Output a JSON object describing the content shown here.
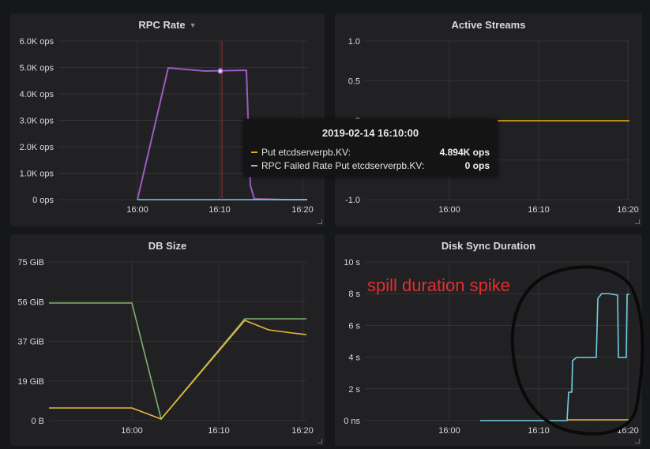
{
  "colors": {
    "background": "#161719",
    "panel": "#212124",
    "grid": "#343436",
    "orange": "#e5ac0e",
    "purple": "#9c5bc4",
    "cyan": "#6ed0e0",
    "green": "#7eb26d",
    "yellow": "#eab839",
    "annotation_red": "#e02f2f"
  },
  "panels": {
    "rpc_rate": {
      "title": "RPC Rate",
      "menu_icon": "caret-down-icon"
    },
    "active_streams": {
      "title": "Active Streams"
    },
    "db_size": {
      "title": "DB Size"
    },
    "disk_sync": {
      "title": "Disk Sync Duration"
    }
  },
  "tooltip": {
    "time": "2019-02-14 16:10:00",
    "rows": [
      {
        "name": "Put etcdserverpb.KV:",
        "value": "4.894K ops",
        "color": "#e5ac0e"
      },
      {
        "name": "RPC Failed Rate Put etcdserverpb.KV:",
        "value": "0 ops",
        "color": "#b9a4e8"
      }
    ]
  },
  "annotation": {
    "text": "spill duration spike"
  },
  "chart_data": [
    {
      "title": "RPC Rate",
      "type": "line",
      "x_ticks": [
        "16:00",
        "16:10",
        "16:20"
      ],
      "y_ticks": [
        "6.0K ops",
        "5.0K ops",
        "4.0K ops",
        "3.0K ops",
        "2.0K ops",
        "1.0K ops",
        "0 ops"
      ],
      "ylim": [
        0,
        6000
      ],
      "x": [
        15.95,
        16.0,
        16.05,
        16.08,
        16.13,
        16.15,
        16.18
      ],
      "series": [
        {
          "name": "Put etcdserverpb.KV:",
          "color": "#9c5bc4",
          "values": [
            0,
            0,
            5000,
            4900,
            4900,
            100,
            0
          ]
        },
        {
          "name": "RPC Failed Rate Put etcdserverpb.KV:",
          "color": "#6ed0e0",
          "values": [
            0,
            0,
            0,
            0,
            0,
            0,
            0
          ]
        }
      ]
    },
    {
      "title": "Active Streams",
      "type": "line",
      "x_ticks": [
        "16:00",
        "16:10",
        "16:20"
      ],
      "y_ticks": [
        "1.0",
        "0.5",
        "0",
        "-0.5",
        "-1.0"
      ],
      "ylim": [
        -1,
        1
      ],
      "x": [
        16.0,
        16.2
      ],
      "series": [
        {
          "color": "#e5ac0e",
          "values": [
            0,
            0
          ]
        }
      ]
    },
    {
      "title": "DB Size",
      "type": "line",
      "x_ticks": [
        "16:00",
        "16:10",
        "16:20"
      ],
      "y_ticks": [
        "75 GiB",
        "56 GiB",
        "37 GiB",
        "19 GiB",
        "0 B"
      ],
      "ylim": [
        0,
        75
      ],
      "x": [
        15.9,
        16.0,
        16.04,
        16.13,
        16.2
      ],
      "series": [
        {
          "color": "#7eb26d",
          "values": [
            56,
            56,
            0,
            48,
            48
          ]
        },
        {
          "color": "#eab839",
          "values": [
            6,
            6,
            0,
            48,
            40
          ]
        }
      ]
    },
    {
      "title": "Disk Sync Duration",
      "type": "line",
      "x_ticks": [
        "16:00",
        "16:10",
        "16:20"
      ],
      "y_ticks": [
        "10 s",
        "8 s",
        "6 s",
        "4 s",
        "2 s",
        "0 ns"
      ],
      "ylim": [
        0,
        10
      ],
      "x": [
        16.04,
        16.13,
        16.15,
        16.16,
        16.19,
        16.2
      ],
      "series": [
        {
          "color": "#6ed0e0",
          "values": [
            0,
            0,
            2,
            4,
            8,
            8
          ]
        },
        {
          "color": "#eab839",
          "values": [
            0,
            0,
            0.1,
            0.1,
            0.1,
            0.1
          ]
        }
      ]
    }
  ]
}
